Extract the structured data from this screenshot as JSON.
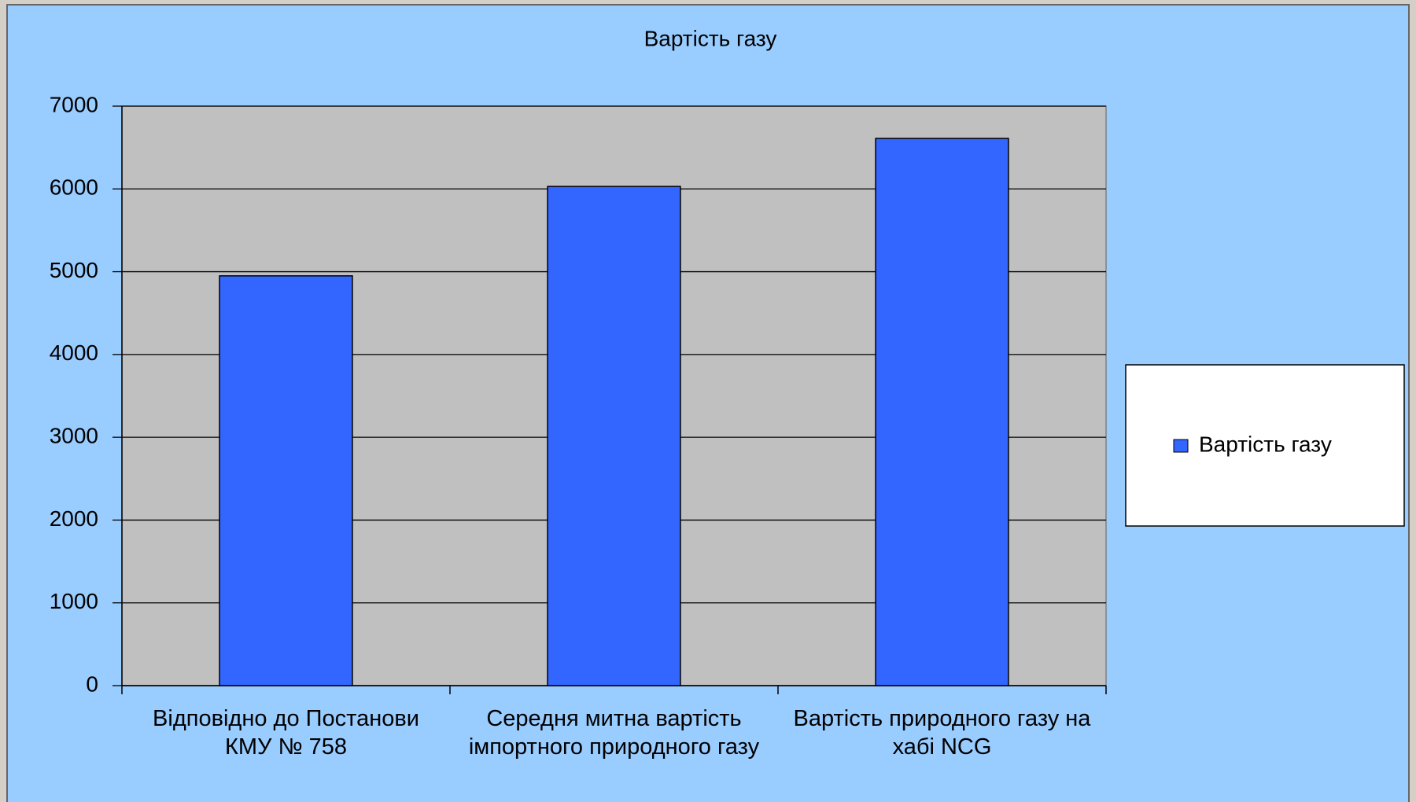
{
  "chart_data": {
    "type": "bar",
    "title": "Вартість газу",
    "categories": [
      "Відповідно до Постанови КМУ № 758",
      "Середня митна вартість імпортного природного газу",
      "Вартість природного газу на хабі NCG"
    ],
    "series": [
      {
        "name": "Вартість газу",
        "color": "#3366ff",
        "values": [
          4950,
          6030,
          6610
        ]
      }
    ],
    "ylim": [
      0,
      7000
    ],
    "yticks": [
      0,
      1000,
      2000,
      3000,
      4000,
      5000,
      6000,
      7000
    ],
    "grid": true,
    "legend": "right"
  }
}
